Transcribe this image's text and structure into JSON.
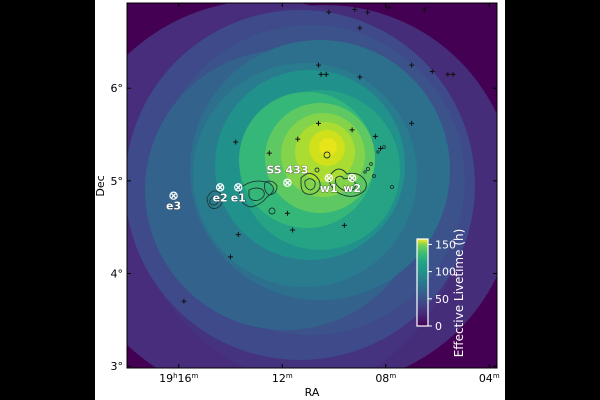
{
  "chart_data": {
    "type": "heatmap",
    "title": "",
    "xlabel": "RA",
    "ylabel": "Dec",
    "x_ticks": [
      {
        "value": 16,
        "hours": "19",
        "minutes": "16"
      },
      {
        "value": 12,
        "hours": "",
        "minutes": "12"
      },
      {
        "value": 8,
        "hours": "",
        "minutes": "08"
      },
      {
        "value": 4,
        "hours": "",
        "minutes": "04"
      }
    ],
    "x_range_minutes": [
      18.0,
      3.7
    ],
    "y_ticks": [
      "3°",
      "4°",
      "5°",
      "6°"
    ],
    "y_range_deg": [
      2.98,
      6.92
    ],
    "colorbar": {
      "label": "Effective Livetime (h)",
      "ticks": [
        "0",
        "50",
        "100",
        "150"
      ],
      "range": [
        0,
        160
      ],
      "colormap": "viridis"
    },
    "peak_livetime_h": 155,
    "peak_position": {
      "ra_minutes": 11.4,
      "dec_deg": 5.3
    },
    "sources": [
      {
        "name": "SS 433",
        "ra_minutes": 11.8,
        "dec_deg": 4.98
      },
      {
        "name": "w1",
        "ra_minutes": 10.2,
        "dec_deg": 5.03
      },
      {
        "name": "w2",
        "ra_minutes": 9.3,
        "dec_deg": 5.03
      },
      {
        "name": "e1",
        "ra_minutes": 13.7,
        "dec_deg": 4.93
      },
      {
        "name": "e2",
        "ra_minutes": 14.4,
        "dec_deg": 4.93
      },
      {
        "name": "e3",
        "ra_minutes": 16.2,
        "dec_deg": 4.84
      }
    ],
    "stars": [
      [
        10.2,
        6.82
      ],
      [
        9.2,
        6.85
      ],
      [
        8.7,
        6.82
      ],
      [
        7.9,
        6.87
      ],
      [
        6.5,
        6.85
      ],
      [
        9.0,
        6.65
      ],
      [
        10.6,
        6.25
      ],
      [
        10.5,
        6.15
      ],
      [
        10.3,
        6.15
      ],
      [
        9.0,
        6.12
      ],
      [
        7.0,
        6.25
      ],
      [
        6.2,
        6.18
      ],
      [
        5.6,
        6.15
      ],
      [
        5.4,
        6.15
      ],
      [
        10.6,
        5.62
      ],
      [
        9.3,
        5.55
      ],
      [
        8.4,
        5.48
      ],
      [
        7.0,
        5.62
      ],
      [
        12.5,
        5.3
      ],
      [
        13.8,
        5.42
      ],
      [
        11.4,
        5.45
      ],
      [
        8.2,
        5.35
      ],
      [
        11.8,
        4.65
      ],
      [
        11.6,
        4.47
      ],
      [
        13.7,
        4.42
      ],
      [
        9.6,
        4.52
      ],
      [
        14.0,
        4.18
      ],
      [
        15.8,
        3.7
      ]
    ],
    "palette": {
      "bg": "#440154",
      "axis": "#000000",
      "source_label": "#ffffff",
      "contour": "#1b3a35"
    }
  }
}
